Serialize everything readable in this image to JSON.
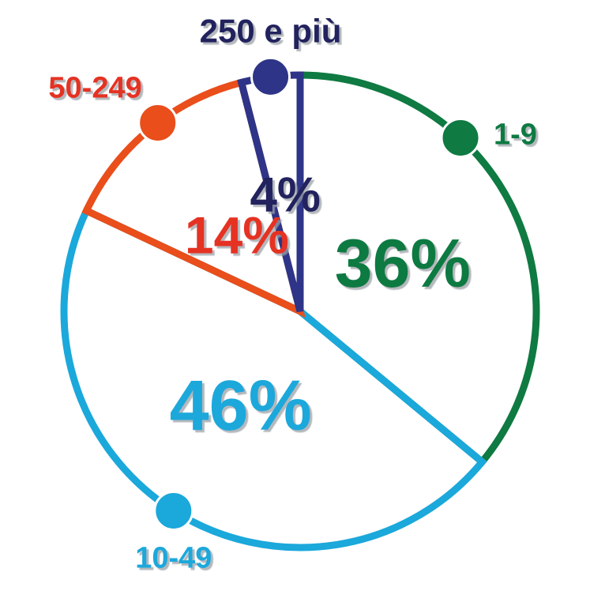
{
  "chart_data": {
    "type": "pie",
    "title": "",
    "start_angle_deg": 0,
    "direction": "clockwise",
    "slices": [
      {
        "label": "1-9",
        "value": 36,
        "value_label": "36%",
        "color": "#0f7a42"
      },
      {
        "label": "10-49",
        "value": 46,
        "value_label": "46%",
        "color": "#1ba8db"
      },
      {
        "label": "50-249",
        "value": 14,
        "value_label": "14%",
        "color": "#e94e1b"
      },
      {
        "label": "250 e più",
        "value": 4,
        "value_label": "4%",
        "color": "#2e3487"
      }
    ],
    "label_text_colors": {
      "1-9": "#0f7a42",
      "10-49": "#1ba8db",
      "50-249": "#e53223",
      "250 e più": "#23235e"
    }
  }
}
